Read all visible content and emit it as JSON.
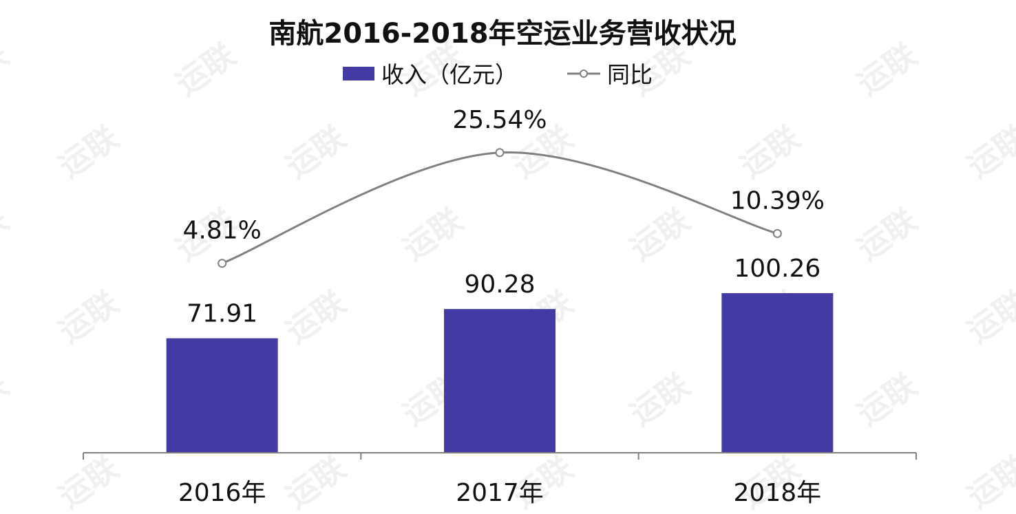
{
  "chart_data": {
    "type": "bar",
    "title": "南航2016-2018年空运业务营收状况",
    "categories": [
      "2016年",
      "2017年",
      "2018年"
    ],
    "series": [
      {
        "name": "收入（亿元）",
        "type": "bar",
        "values": [
          71.91,
          90.28,
          100.26
        ],
        "labels": [
          "71.91",
          "90.28",
          "100.26"
        ]
      },
      {
        "name": "同比",
        "type": "line",
        "values": [
          4.81,
          25.54,
          10.39
        ],
        "labels": [
          "4.81%",
          "25.54%",
          "10.39%"
        ]
      }
    ],
    "legend": "top-center",
    "grid": false
  },
  "colors": {
    "bar": "#433ba3",
    "line": "#808080",
    "axis": "#808080",
    "text": "#111111"
  },
  "watermark": "运联"
}
